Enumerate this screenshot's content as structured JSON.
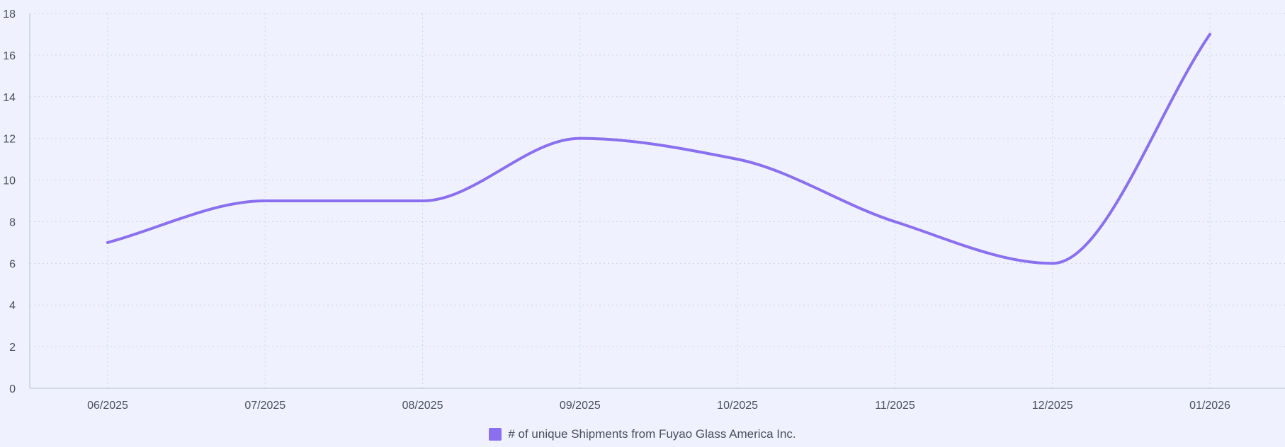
{
  "chart_data": {
    "type": "line",
    "title": "",
    "xlabel": "",
    "ylabel": "",
    "categories": [
      "06/2025",
      "07/2025",
      "08/2025",
      "09/2025",
      "10/2025",
      "11/2025",
      "12/2025",
      "01/2026"
    ],
    "series": [
      {
        "name": "# of unique Shipments from Fuyao Glass America Inc.",
        "values": [
          7,
          9,
          9,
          12,
          11,
          8,
          6,
          17
        ],
        "color": "#8a70ee"
      }
    ],
    "ylim": [
      0,
      18
    ],
    "yticks": [
      "0",
      "2",
      "4",
      "6",
      "8",
      "10",
      "12",
      "14",
      "16",
      "18"
    ],
    "grid": true,
    "smooth": true,
    "legend_position": "bottom-center"
  }
}
